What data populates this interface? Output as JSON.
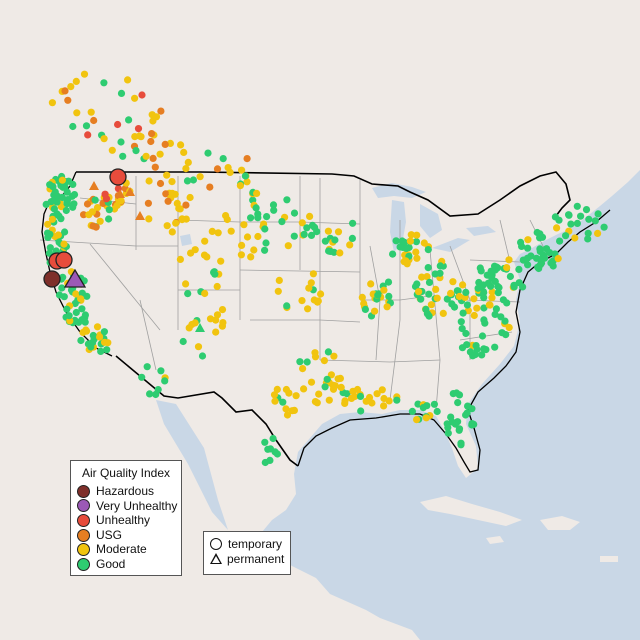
{
  "map": {
    "colors": {
      "water": "#c9d7e6",
      "land": "#efeae6",
      "state_border": "#a0a0a0",
      "national_border": "#000000"
    }
  },
  "aqi_legend": {
    "title": "Air Quality Index",
    "items": [
      {
        "label": "Hazardous",
        "color": "#7e2f2a"
      },
      {
        "label": "Very Unhealthy",
        "color": "#9b59b6"
      },
      {
        "label": "Unhealthy",
        "color": "#e74c3c"
      },
      {
        "label": "USG",
        "color": "#e67e22"
      },
      {
        "label": "Moderate",
        "color": "#f1c40f"
      },
      {
        "label": "Good",
        "color": "#2ecc71"
      }
    ]
  },
  "type_legend": {
    "items": [
      {
        "label": "temporary",
        "shape": "circle"
      },
      {
        "label": "permanent",
        "shape": "triangle"
      }
    ]
  }
}
